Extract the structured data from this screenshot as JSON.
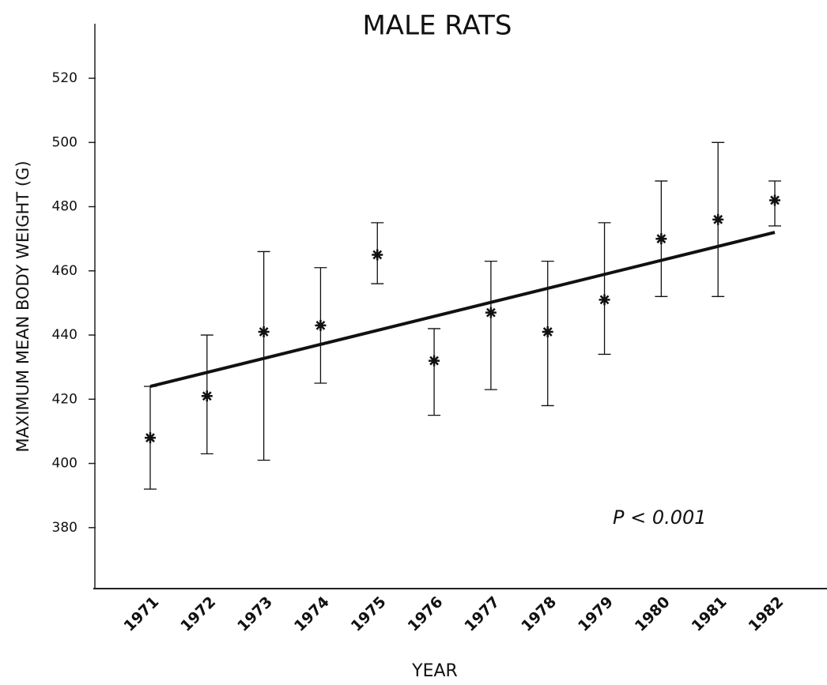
{
  "chart_data": {
    "type": "errorbar",
    "title": "MALE RATS",
    "x_label": "YEAR",
    "y_label": "MAXIMUM MEAN BODY WEIGHT (G)",
    "annotation": "P < 0.001",
    "categories": [
      "1971",
      "1972",
      "1973",
      "1974",
      "1975",
      "1976",
      "1977",
      "1978",
      "1979",
      "1980",
      "1981",
      "1982"
    ],
    "values": [
      408,
      421,
      441,
      443,
      465,
      432,
      447,
      441,
      451,
      470,
      476,
      482
    ],
    "lower": [
      392,
      403,
      401,
      425,
      456,
      415,
      423,
      418,
      434,
      452,
      452,
      474
    ],
    "upper": [
      424,
      440,
      466,
      461,
      475,
      442,
      463,
      463,
      475,
      488,
      500,
      488
    ],
    "trend": [
      424,
      472
    ],
    "color": "#111111",
    "ylim": [
      361,
      537
    ],
    "yticks": [
      380,
      400,
      420,
      440,
      460,
      480,
      500,
      520
    ]
  }
}
